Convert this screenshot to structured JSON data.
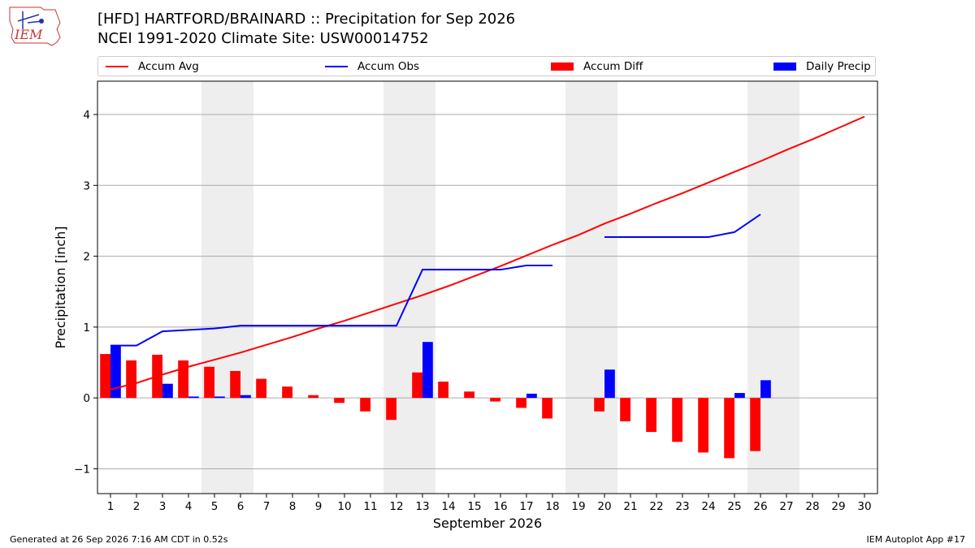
{
  "header": {
    "logo_text": "IEM",
    "title_line1": "[HFD] HARTFORD/BRAINARD :: Precipitation for Sep 2026",
    "title_line2": "NCEI 1991-2020 Climate Site: USW00014752"
  },
  "colors": {
    "accum_avg": "#ff0000",
    "accum_obs": "#0000ff",
    "accum_diff": "#ff0000",
    "daily_precip": "#0000ff",
    "weekend_shade": "#eeeeee",
    "grid": "#aaaaaa"
  },
  "legend": [
    {
      "label": "Accum Avg",
      "kind": "line",
      "color": "#ff0000"
    },
    {
      "label": "Accum Obs",
      "kind": "line",
      "color": "#0000ff"
    },
    {
      "label": "Accum Diff",
      "kind": "box",
      "color": "#ff0000"
    },
    {
      "label": "Daily Precip",
      "kind": "box",
      "color": "#0000ff"
    }
  ],
  "chart_data": {
    "type": "bar",
    "title": "[HFD] HARTFORD/BRAINARD :: Precipitation for Sep 2026",
    "subtitle": "NCEI 1991-2020 Climate Site: USW00014752",
    "xlabel": "September 2026",
    "ylabel": "Precipitation [inch]",
    "xlim": [
      0.5,
      30.5
    ],
    "ylim": [
      -1.35,
      4.47
    ],
    "yticks": [
      -1,
      0,
      1,
      2,
      3,
      4
    ],
    "ytick_labels": [
      "−1",
      "0",
      "1",
      "2",
      "3",
      "4"
    ],
    "x": [
      1,
      2,
      3,
      4,
      5,
      6,
      7,
      8,
      9,
      10,
      11,
      12,
      13,
      14,
      15,
      16,
      17,
      18,
      19,
      20,
      21,
      22,
      23,
      24,
      25,
      26,
      27,
      28,
      29,
      30
    ],
    "grid": "horizontal",
    "weekend_shading": [
      [
        4.5,
        6.5
      ],
      [
        11.5,
        13.5
      ],
      [
        18.5,
        20.5
      ],
      [
        25.5,
        27.5
      ]
    ],
    "series": [
      {
        "name": "Accum Avg",
        "type": "line",
        "x": [
          1,
          2,
          3,
          4,
          5,
          6,
          7,
          8,
          9,
          10,
          11,
          12,
          13,
          14,
          15,
          16,
          17,
          18,
          19,
          20,
          21,
          22,
          23,
          24,
          25,
          26,
          27,
          28,
          29,
          30
        ],
        "values": [
          0.12,
          0.21,
          0.33,
          0.44,
          0.54,
          0.64,
          0.75,
          0.86,
          0.98,
          1.09,
          1.21,
          1.33,
          1.45,
          1.58,
          1.72,
          1.86,
          2.01,
          2.16,
          2.3,
          2.46,
          2.6,
          2.75,
          2.89,
          3.04,
          3.19,
          3.34,
          3.5,
          3.65,
          3.81,
          3.97
        ]
      },
      {
        "name": "Accum Obs",
        "type": "line",
        "segments": [
          {
            "x": [
              1,
              2,
              3,
              4,
              5,
              6,
              7,
              8,
              9,
              10,
              11,
              12,
              13,
              14,
              15,
              16,
              17,
              18
            ],
            "values": [
              0.74,
              0.74,
              0.94,
              0.96,
              0.98,
              1.02,
              1.02,
              1.02,
              1.02,
              1.02,
              1.02,
              1.02,
              1.81,
              1.81,
              1.81,
              1.81,
              1.87,
              1.87
            ]
          },
          {
            "x": [
              20,
              21,
              22,
              23,
              24,
              25,
              26
            ],
            "values": [
              2.27,
              2.27,
              2.27,
              2.27,
              2.27,
              2.34,
              2.59
            ]
          }
        ]
      },
      {
        "name": "Accum Diff",
        "type": "bar",
        "x": [
          1,
          2,
          3,
          4,
          5,
          6,
          7,
          8,
          9,
          10,
          11,
          12,
          13,
          14,
          15,
          16,
          17,
          18,
          20,
          21,
          22,
          23,
          24,
          25,
          26
        ],
        "values": [
          0.62,
          0.53,
          0.61,
          0.53,
          0.44,
          0.38,
          0.27,
          0.16,
          0.04,
          -0.07,
          -0.19,
          -0.31,
          0.36,
          0.23,
          0.09,
          -0.05,
          -0.14,
          -0.29,
          -0.19,
          -0.33,
          -0.48,
          -0.62,
          -0.77,
          -0.85,
          -0.75
        ]
      },
      {
        "name": "Daily Precip",
        "type": "bar",
        "x": [
          1,
          3,
          4,
          5,
          6,
          13,
          17,
          20,
          25,
          26
        ],
        "values": [
          0.74,
          0.2,
          0.02,
          0.02,
          0.04,
          0.79,
          0.06,
          0.4,
          0.07,
          0.25
        ]
      }
    ]
  },
  "footer": {
    "left": "Generated at 26 Sep 2026 7:16 AM CDT in 0.52s",
    "right": "IEM Autoplot App #17"
  }
}
